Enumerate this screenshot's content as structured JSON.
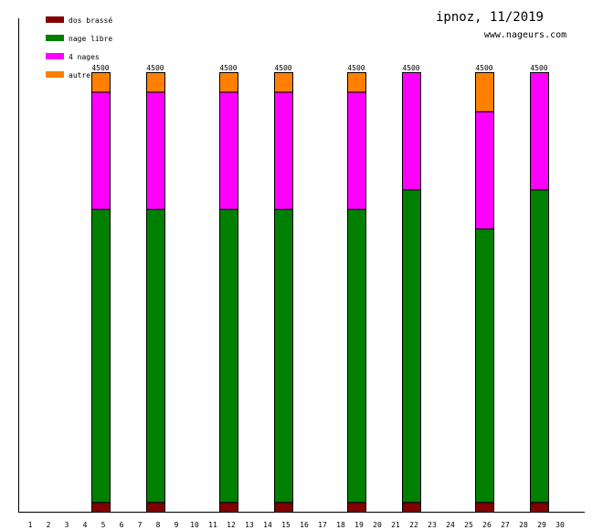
{
  "chart_data": {
    "type": "bar",
    "stacked": true,
    "title": "ipnoz, 11/2019",
    "subtitle": "www.nageurs.com",
    "x": [
      1,
      2,
      3,
      4,
      5,
      6,
      7,
      8,
      9,
      10,
      11,
      12,
      13,
      14,
      15,
      16,
      17,
      18,
      19,
      20,
      21,
      22,
      23,
      24,
      25,
      26,
      27,
      28,
      29,
      30
    ],
    "ylim": [
      0,
      4500
    ],
    "legend_position": "top-left",
    "series": [
      {
        "name": "dos brassé",
        "color": "#800000",
        "values": [
          0,
          0,
          0,
          0,
          100,
          0,
          0,
          100,
          0,
          0,
          0,
          100,
          0,
          0,
          100,
          0,
          0,
          0,
          100,
          0,
          0,
          100,
          0,
          0,
          0,
          100,
          0,
          0,
          100,
          0
        ]
      },
      {
        "name": "nage libre",
        "color": "#008000",
        "values": [
          0,
          0,
          0,
          0,
          3000,
          0,
          0,
          3000,
          0,
          0,
          0,
          3000,
          0,
          0,
          3000,
          0,
          0,
          0,
          3000,
          0,
          0,
          3200,
          0,
          0,
          0,
          2800,
          0,
          0,
          3200,
          0
        ]
      },
      {
        "name": "4 nages",
        "color": "#ff00ff",
        "values": [
          0,
          0,
          0,
          0,
          1200,
          0,
          0,
          1200,
          0,
          0,
          0,
          1200,
          0,
          0,
          1200,
          0,
          0,
          0,
          1200,
          0,
          0,
          1200,
          0,
          0,
          0,
          1200,
          0,
          0,
          1200,
          0
        ]
      },
      {
        "name": "autre",
        "color": "#ff8000",
        "values": [
          0,
          0,
          0,
          0,
          200,
          0,
          0,
          200,
          0,
          0,
          0,
          200,
          0,
          0,
          200,
          0,
          0,
          0,
          200,
          0,
          0,
          0,
          0,
          0,
          0,
          400,
          0,
          0,
          0,
          0
        ]
      }
    ],
    "totals": [
      {
        "x": 5,
        "label": "4500"
      },
      {
        "x": 8,
        "label": "4500"
      },
      {
        "x": 12,
        "label": "4500"
      },
      {
        "x": 15,
        "label": "4500"
      },
      {
        "x": 19,
        "label": "4500"
      },
      {
        "x": 22,
        "label": "4500"
      },
      {
        "x": 26,
        "label": "4500"
      },
      {
        "x": 29,
        "label": "4500"
      }
    ]
  }
}
